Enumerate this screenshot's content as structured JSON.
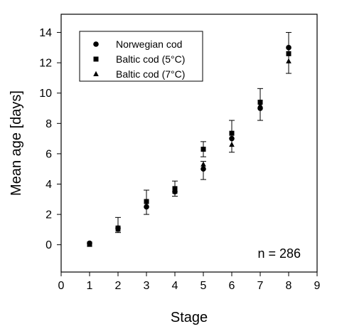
{
  "chart_data": {
    "type": "scatter",
    "xlabel": "Stage",
    "ylabel": "Mean age [days]",
    "xlim": [
      0,
      9
    ],
    "ylim": [
      -1.8,
      15.2
    ],
    "x_ticks": [
      0,
      1,
      2,
      3,
      4,
      5,
      6,
      7,
      8,
      9
    ],
    "y_ticks": [
      0,
      2,
      4,
      6,
      8,
      10,
      12,
      14
    ],
    "grid": false,
    "legend_position": "top-left",
    "annotation": "n = 286",
    "series": [
      {
        "name": "Norwegian cod",
        "marker": "circle",
        "x": [
          1,
          2,
          3,
          4,
          5,
          6,
          7,
          8
        ],
        "y": [
          0.1,
          1.1,
          2.5,
          3.5,
          5.0,
          7.0,
          9.0,
          13.0
        ],
        "y_err_low": [
          null,
          0.8,
          2.0,
          3.2,
          4.3,
          6.1,
          8.2,
          11.3
        ],
        "y_err_high": [
          null,
          1.8,
          3.6,
          4.2,
          5.5,
          8.2,
          10.3,
          14.0
        ]
      },
      {
        "name": "Baltic cod (5°C)",
        "marker": "square",
        "x": [
          1,
          2,
          3,
          4,
          5,
          6,
          7,
          8
        ],
        "y": [
          0.05,
          1.1,
          2.85,
          3.7,
          6.3,
          7.35,
          9.4,
          12.6
        ],
        "y_err_low": [
          null,
          null,
          null,
          null,
          5.8,
          null,
          null,
          null
        ],
        "y_err_high": [
          null,
          null,
          null,
          null,
          6.8,
          null,
          null,
          null
        ]
      },
      {
        "name": "Baltic cod (7°C)",
        "marker": "triangle",
        "x": [
          1,
          2,
          3,
          4,
          5,
          6,
          7,
          8
        ],
        "y": [
          0.0,
          1.0,
          2.6,
          3.5,
          5.3,
          6.6,
          9.2,
          12.1
        ],
        "y_err_low": [
          null,
          null,
          null,
          null,
          null,
          null,
          null,
          null
        ],
        "y_err_high": [
          null,
          null,
          null,
          null,
          null,
          null,
          null,
          null
        ]
      }
    ]
  }
}
